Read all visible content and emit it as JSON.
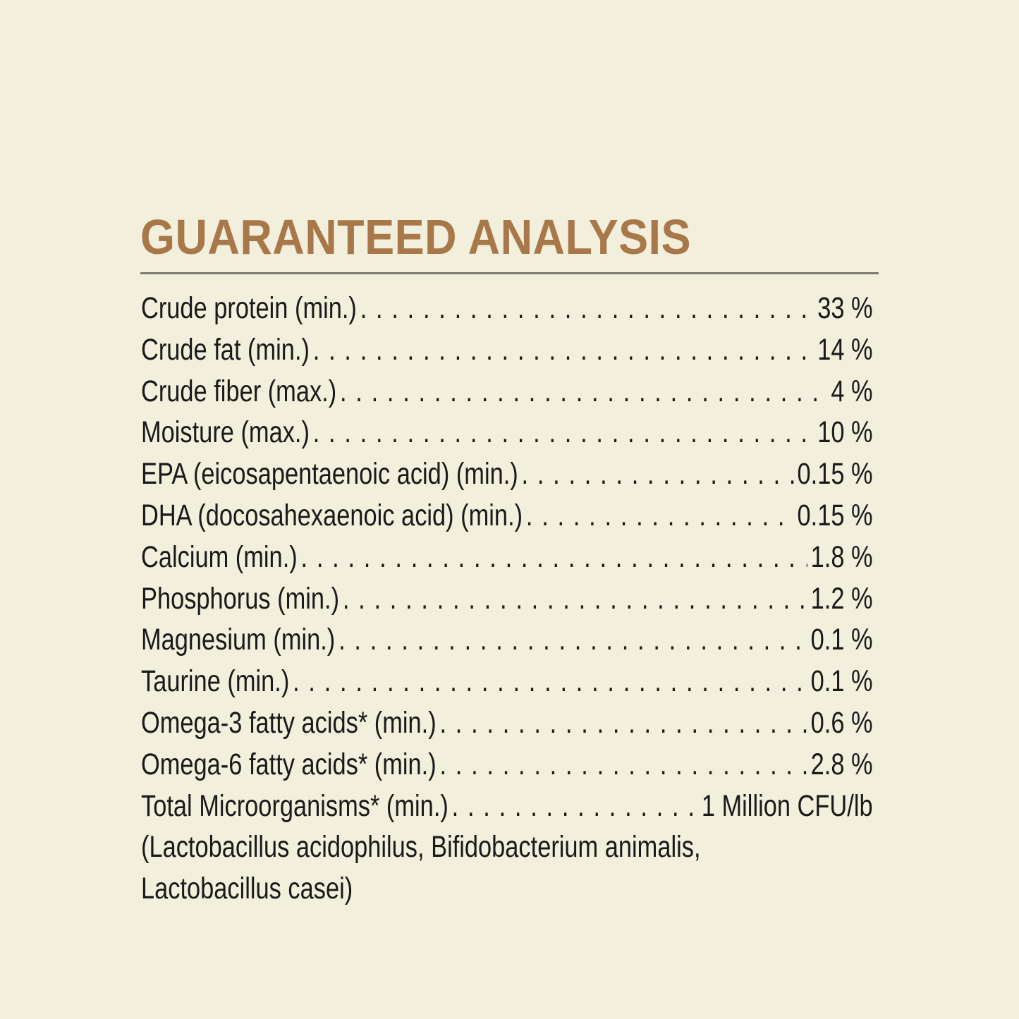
{
  "title": "GUARANTEED ANALYSIS",
  "colors": {
    "background": "#f2efdc",
    "title": "#a8784a",
    "rule": "#7b7b73",
    "text": "#1a1a1a"
  },
  "rows": [
    {
      "label": "Crude protein (min.)",
      "value": "33 %"
    },
    {
      "label": "Crude fat (min.)",
      "value": "14 %"
    },
    {
      "label": "Crude fiber (max.)",
      "value": "4 %"
    },
    {
      "label": "Moisture (max.)",
      "value": "10 %"
    },
    {
      "label": "EPA (eicosapentaenoic acid) (min.)",
      "value": "0.15 %"
    },
    {
      "label": "DHA (docosahexaenoic acid) (min.)",
      "value": "0.15 %"
    },
    {
      "label": "Calcium (min.)",
      "value": "1.8 %"
    },
    {
      "label": "Phosphorus (min.)",
      "value": "1.2 %"
    },
    {
      "label": "Magnesium (min.)",
      "value": "0.1 %"
    },
    {
      "label": "Taurine (min.)",
      "value": "0.1 %"
    },
    {
      "label": "Omega-3 fatty acids* (min.)",
      "value": "0.6 %"
    },
    {
      "label": "Omega-6 fatty acids* (min.)",
      "value": "2.8 %"
    },
    {
      "label": "Total Microorganisms* (min.)",
      "value": "1 Million CFU/lb"
    }
  ],
  "notes": [
    "(Lactobacillus acidophilus, Bifidobacterium animalis,",
    "Lactobacillus casei)"
  ]
}
